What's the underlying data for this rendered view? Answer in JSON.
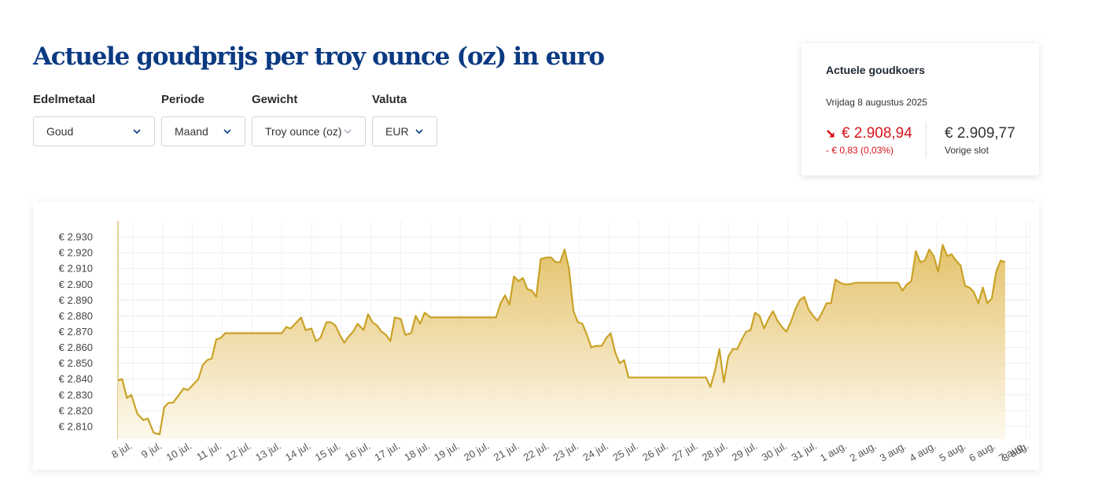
{
  "page": {
    "title": "Actuele goudprijs per troy ounce (oz) in euro"
  },
  "filters": [
    {
      "label": "Edelmetaal",
      "value": "Goud"
    },
    {
      "label": "Periode",
      "value": "Maand"
    },
    {
      "label": "Gewicht",
      "value": "Troy ounce (oz)"
    },
    {
      "label": "Valuta",
      "value": "EUR"
    }
  ],
  "rate": {
    "title": "Actuele goudkoers",
    "date": "Vrijdag 8 augustus 2025",
    "current": "€ 2.908,94",
    "change": "- € 0,83 (0,03%)",
    "previous": "€ 2.909,77",
    "previous_label": "Vorige slot",
    "trend_icon": "arrow-down-right-icon",
    "down_color": "#d6161d"
  },
  "chart_data": {
    "type": "area",
    "title": "",
    "xlabel": "",
    "ylabel": "",
    "ylim": [
      2802,
      2940
    ],
    "yticks": [
      2810,
      2820,
      2830,
      2840,
      2850,
      2860,
      2870,
      2880,
      2890,
      2900,
      2910,
      2920,
      2930
    ],
    "ytick_labels": [
      "€ 2.810",
      "€ 2.820",
      "€ 2.830",
      "€ 2.840",
      "€ 2.850",
      "€ 2.860",
      "€ 2.870",
      "€ 2.880",
      "€ 2.890",
      "€ 2.900",
      "€ 2.910",
      "€ 2.920",
      "€ 2.930"
    ],
    "xticks": [
      {
        "t": 0.5,
        "label": "8 jul."
      },
      {
        "t": 1.5,
        "label": "9 jul."
      },
      {
        "t": 2.5,
        "label": "10 jul."
      },
      {
        "t": 3.5,
        "label": "11 jul."
      },
      {
        "t": 4.5,
        "label": "12 jul."
      },
      {
        "t": 5.5,
        "label": "13 jul."
      },
      {
        "t": 6.5,
        "label": "14 jul."
      },
      {
        "t": 7.5,
        "label": "15 jul."
      },
      {
        "t": 8.5,
        "label": "16 jul."
      },
      {
        "t": 9.5,
        "label": "17 jul."
      },
      {
        "t": 10.5,
        "label": "18 jul."
      },
      {
        "t": 11.5,
        "label": "19 jul."
      },
      {
        "t": 12.5,
        "label": "20 jul."
      },
      {
        "t": 13.5,
        "label": "21 jul."
      },
      {
        "t": 14.5,
        "label": "22 jul."
      },
      {
        "t": 15.5,
        "label": "23 jul."
      },
      {
        "t": 16.5,
        "label": "24 jul."
      },
      {
        "t": 17.5,
        "label": "25 jul."
      },
      {
        "t": 18.5,
        "label": "26 jul."
      },
      {
        "t": 19.5,
        "label": "27 jul."
      },
      {
        "t": 20.5,
        "label": "28 jul."
      },
      {
        "t": 21.5,
        "label": "29 jul."
      },
      {
        "t": 22.5,
        "label": "30 jul."
      },
      {
        "t": 23.5,
        "label": "31 jul."
      },
      {
        "t": 24.5,
        "label": "1 aug."
      },
      {
        "t": 25.5,
        "label": "2 aug."
      },
      {
        "t": 26.5,
        "label": "3 aug."
      },
      {
        "t": 27.5,
        "label": "4 aug."
      },
      {
        "t": 28.5,
        "label": "5 aug."
      },
      {
        "t": 29.5,
        "label": "6 aug."
      },
      {
        "t": 30.5,
        "label": "7 aug."
      },
      {
        "t": 30.62,
        "label": "8 aug."
      }
    ],
    "series": [
      {
        "values": [
          [
            0.0,
            2839
          ],
          [
            0.14,
            2840
          ],
          [
            0.3,
            2828
          ],
          [
            0.45,
            2830
          ],
          [
            0.65,
            2818
          ],
          [
            0.85,
            2814
          ],
          [
            1.0,
            2815
          ],
          [
            1.2,
            2806
          ],
          [
            1.4,
            2805
          ],
          [
            1.55,
            2822
          ],
          [
            1.7,
            2825
          ],
          [
            1.85,
            2825
          ],
          [
            2.05,
            2830
          ],
          [
            2.2,
            2834
          ],
          [
            2.35,
            2833
          ],
          [
            2.6,
            2838
          ],
          [
            2.7,
            2840
          ],
          [
            2.85,
            2849
          ],
          [
            3.0,
            2852
          ],
          [
            3.15,
            2853
          ],
          [
            3.3,
            2865
          ],
          [
            3.45,
            2866
          ],
          [
            3.6,
            2869
          ],
          [
            3.8,
            2869
          ],
          [
            4.5,
            2869
          ],
          [
            5.0,
            2869
          ],
          [
            5.5,
            2869
          ],
          [
            5.65,
            2873
          ],
          [
            5.8,
            2872
          ],
          [
            6.0,
            2876
          ],
          [
            6.15,
            2879
          ],
          [
            6.3,
            2871
          ],
          [
            6.5,
            2872
          ],
          [
            6.65,
            2864
          ],
          [
            6.8,
            2866
          ],
          [
            7.0,
            2876
          ],
          [
            7.15,
            2876
          ],
          [
            7.3,
            2874
          ],
          [
            7.45,
            2868
          ],
          [
            7.6,
            2863
          ],
          [
            7.75,
            2867
          ],
          [
            7.9,
            2870
          ],
          [
            8.05,
            2875
          ],
          [
            8.25,
            2871
          ],
          [
            8.4,
            2881
          ],
          [
            8.55,
            2876
          ],
          [
            8.7,
            2874
          ],
          [
            8.85,
            2870
          ],
          [
            9.0,
            2868
          ],
          [
            9.15,
            2864
          ],
          [
            9.3,
            2879
          ],
          [
            9.5,
            2878
          ],
          [
            9.65,
            2868
          ],
          [
            9.85,
            2869
          ],
          [
            10.0,
            2880
          ],
          [
            10.15,
            2875
          ],
          [
            10.3,
            2882
          ],
          [
            10.5,
            2879
          ],
          [
            11.0,
            2879
          ],
          [
            11.5,
            2879
          ],
          [
            12.0,
            2879
          ],
          [
            12.5,
            2879
          ],
          [
            12.7,
            2879
          ],
          [
            12.85,
            2888
          ],
          [
            13.0,
            2893
          ],
          [
            13.15,
            2887
          ],
          [
            13.3,
            2905
          ],
          [
            13.45,
            2902
          ],
          [
            13.6,
            2904
          ],
          [
            13.75,
            2897
          ],
          [
            13.9,
            2896
          ],
          [
            14.05,
            2892
          ],
          [
            14.2,
            2916
          ],
          [
            14.4,
            2917
          ],
          [
            14.55,
            2917
          ],
          [
            14.7,
            2914
          ],
          [
            14.85,
            2914
          ],
          [
            15.0,
            2922
          ],
          [
            15.15,
            2910
          ],
          [
            15.3,
            2883
          ],
          [
            15.45,
            2876
          ],
          [
            15.6,
            2875
          ],
          [
            15.75,
            2868
          ],
          [
            15.9,
            2860
          ],
          [
            16.05,
            2861
          ],
          [
            16.25,
            2861
          ],
          [
            16.4,
            2866
          ],
          [
            16.55,
            2869
          ],
          [
            16.7,
            2857
          ],
          [
            16.85,
            2850
          ],
          [
            17.0,
            2852
          ],
          [
            17.15,
            2841
          ],
          [
            17.5,
            2841
          ],
          [
            18.0,
            2841
          ],
          [
            18.5,
            2841
          ],
          [
            19.0,
            2841
          ],
          [
            19.5,
            2841
          ],
          [
            19.75,
            2841
          ],
          [
            19.9,
            2835
          ],
          [
            20.05,
            2845
          ],
          [
            20.2,
            2859
          ],
          [
            20.35,
            2838
          ],
          [
            20.5,
            2854
          ],
          [
            20.65,
            2859
          ],
          [
            20.8,
            2859
          ],
          [
            20.95,
            2865
          ],
          [
            21.1,
            2870
          ],
          [
            21.25,
            2871
          ],
          [
            21.4,
            2882
          ],
          [
            21.55,
            2880
          ],
          [
            21.7,
            2872
          ],
          [
            21.85,
            2878
          ],
          [
            22.0,
            2883
          ],
          [
            22.15,
            2877
          ],
          [
            22.3,
            2873
          ],
          [
            22.45,
            2870
          ],
          [
            22.6,
            2876
          ],
          [
            22.75,
            2884
          ],
          [
            22.9,
            2890
          ],
          [
            23.05,
            2892
          ],
          [
            23.2,
            2884
          ],
          [
            23.35,
            2880
          ],
          [
            23.5,
            2877
          ],
          [
            23.65,
            2882
          ],
          [
            23.8,
            2888
          ],
          [
            23.95,
            2888
          ],
          [
            24.1,
            2903
          ],
          [
            24.25,
            2901
          ],
          [
            24.4,
            2900
          ],
          [
            24.55,
            2900
          ],
          [
            24.8,
            2901
          ],
          [
            25.5,
            2901
          ],
          [
            26.0,
            2901
          ],
          [
            26.2,
            2901
          ],
          [
            26.35,
            2896
          ],
          [
            26.5,
            2900
          ],
          [
            26.65,
            2902
          ],
          [
            26.8,
            2921
          ],
          [
            26.95,
            2914
          ],
          [
            27.1,
            2915
          ],
          [
            27.25,
            2922
          ],
          [
            27.4,
            2918
          ],
          [
            27.55,
            2908
          ],
          [
            27.7,
            2925
          ],
          [
            27.85,
            2918
          ],
          [
            28.0,
            2919
          ],
          [
            28.15,
            2915
          ],
          [
            28.3,
            2912
          ],
          [
            28.45,
            2899
          ],
          [
            28.6,
            2898
          ],
          [
            28.75,
            2895
          ],
          [
            28.9,
            2888
          ],
          [
            29.05,
            2898
          ],
          [
            29.2,
            2888
          ],
          [
            29.35,
            2891
          ],
          [
            29.5,
            2908
          ],
          [
            29.65,
            2915
          ],
          [
            29.8,
            2914
          ]
        ]
      }
    ],
    "line_color": "#c9a227",
    "fill_color_top": "#e3bf63",
    "fill_color_bottom": "#fdf8ec",
    "grid": true,
    "legend": "none"
  }
}
